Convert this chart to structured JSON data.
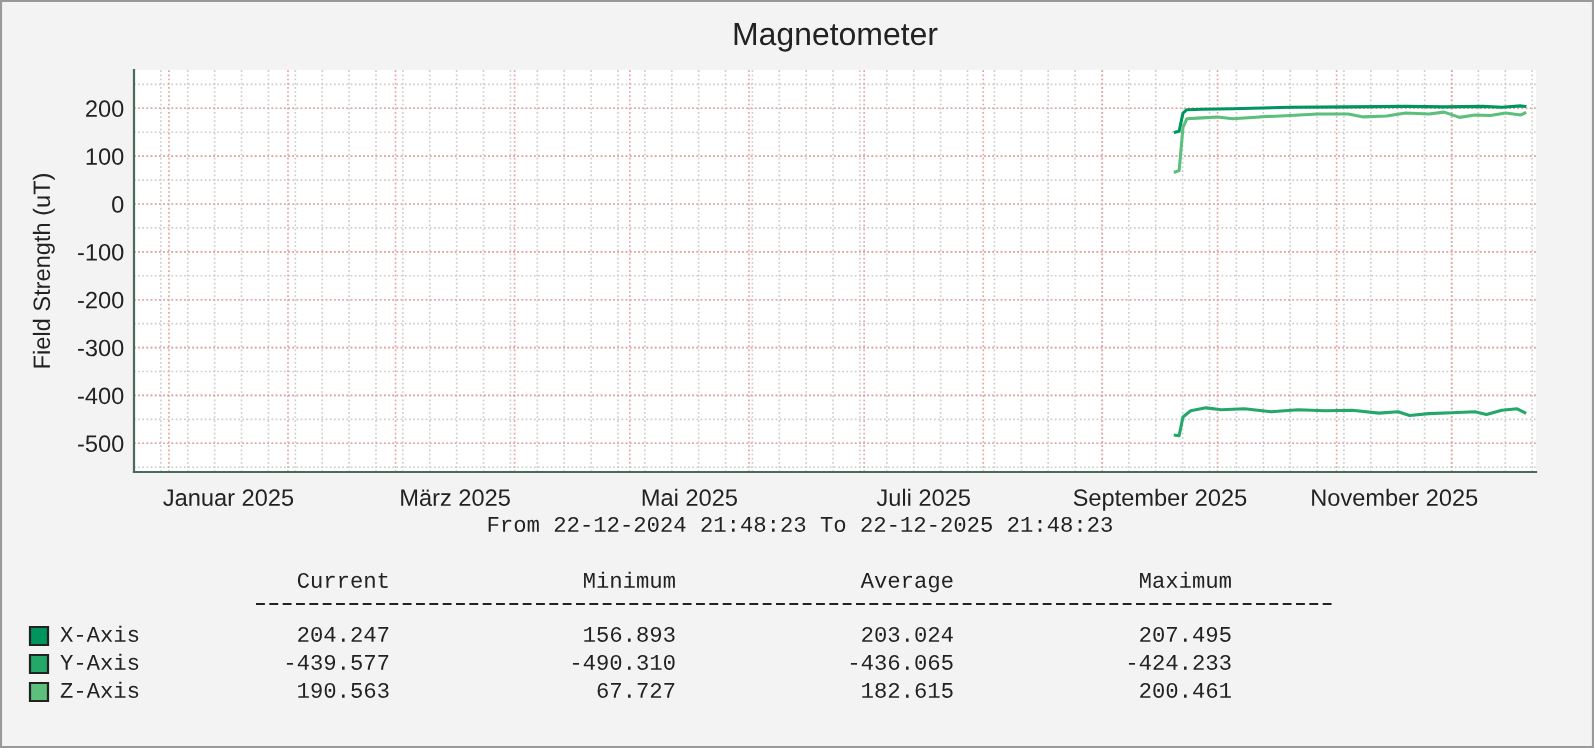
{
  "chart_data": {
    "type": "line",
    "title": "Magnetometer",
    "ylabel": "Field Strength (uT)",
    "xlim": [
      "2024-12-22T21:48",
      "2025-12-22T21:48"
    ],
    "xticks": [
      {
        "value": "2025-01-01",
        "label": null
      },
      {
        "value": "2025-01-16T12:00",
        "label": "Januar 2025"
      },
      {
        "value": "2025-02-01",
        "label": null
      },
      {
        "value": "2025-03-01",
        "label": null
      },
      {
        "value": "2025-03-16T12:00",
        "label": "März 2025"
      },
      {
        "value": "2025-04-01",
        "label": null
      },
      {
        "value": "2025-05-01",
        "label": null
      },
      {
        "value": "2025-05-16T12:00",
        "label": "Mai 2025"
      },
      {
        "value": "2025-06-01",
        "label": null
      },
      {
        "value": "2025-07-01",
        "label": null
      },
      {
        "value": "2025-07-16T12:00",
        "label": "Juli 2025"
      },
      {
        "value": "2025-08-01",
        "label": null
      },
      {
        "value": "2025-09-01",
        "label": null
      },
      {
        "value": "2025-09-16T00:00",
        "label": "September 2025"
      },
      {
        "value": "2025-10-01",
        "label": null
      },
      {
        "value": "2025-11-01",
        "label": null
      },
      {
        "value": "2025-11-16T00:00",
        "label": "November 2025"
      },
      {
        "value": "2025-12-01",
        "label": null
      }
    ],
    "ylim": [
      -560,
      280
    ],
    "yticks": [
      -500,
      -400,
      -300,
      -200,
      -100,
      0,
      100,
      200
    ],
    "grid": true,
    "legend": "bottom left",
    "series": [
      {
        "name": "X-Axis",
        "color": "#00945e",
        "x": [
          "2025-09-20",
          "2025-09-21",
          "2025-09-22",
          "2025-09-23",
          "2025-09-27",
          "2025-10-05",
          "2025-10-20",
          "2025-11-04",
          "2025-11-19",
          "2025-11-29",
          "2025-12-09",
          "2025-12-14",
          "2025-12-19",
          "2025-12-20"
        ],
        "values": [
          150,
          152,
          190,
          197,
          198,
          199,
          202,
          203,
          204,
          203,
          204,
          202,
          205,
          204
        ]
      },
      {
        "name": "Y-Axis",
        "color": "#24a86a",
        "x": [
          "2025-09-20",
          "2025-09-21",
          "2025-09-22",
          "2025-09-24",
          "2025-09-28",
          "2025-10-02",
          "2025-10-08",
          "2025-10-15",
          "2025-10-22",
          "2025-10-29",
          "2025-11-05",
          "2025-11-12",
          "2025-11-17",
          "2025-11-20",
          "2025-11-25",
          "2025-12-01",
          "2025-12-07",
          "2025-12-10",
          "2025-12-14",
          "2025-12-18",
          "2025-12-20"
        ],
        "values": [
          -483,
          -484,
          -445,
          -432,
          -426,
          -430,
          -428,
          -434,
          -430,
          -432,
          -431,
          -437,
          -434,
          -442,
          -438,
          -436,
          -434,
          -440,
          -431,
          -428,
          -436
        ]
      },
      {
        "name": "Z-Axis",
        "color": "#5cbf7c",
        "x": [
          "2025-09-20",
          "2025-09-21",
          "2025-09-22",
          "2025-09-23",
          "2025-09-27",
          "2025-10-01",
          "2025-10-05",
          "2025-10-12",
          "2025-10-20",
          "2025-10-27",
          "2025-11-04",
          "2025-11-08",
          "2025-11-14",
          "2025-11-19",
          "2025-11-25",
          "2025-11-29",
          "2025-12-03",
          "2025-12-07",
          "2025-12-11",
          "2025-12-15",
          "2025-12-19",
          "2025-12-20"
        ],
        "values": [
          67,
          70,
          160,
          178,
          180,
          182,
          178,
          182,
          185,
          188,
          188,
          182,
          184,
          190,
          188,
          192,
          181,
          186,
          185,
          190,
          186,
          190
        ]
      }
    ],
    "annotations": [
      "From 22-12-2024 21:48:23 To 22-12-2025 21:48:23",
      "Current",
      "Minimum",
      "Average",
      "Maximum",
      "204.247",
      "156.893",
      "203.024",
      "207.495",
      "-439.577",
      "-490.310",
      "-436.065",
      "-424.233",
      "190.563",
      "67.727",
      "182.615",
      "200.461"
    ]
  }
}
